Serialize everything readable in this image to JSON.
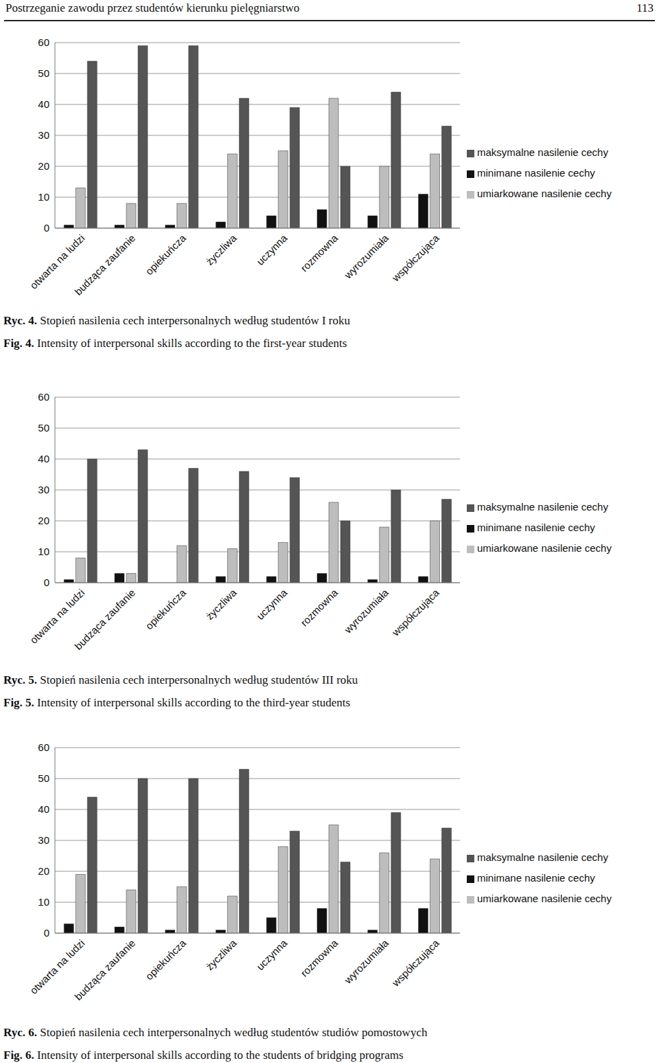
{
  "header": {
    "title": "Postrzeganie zawodu przez studentów kierunku pielęgniarstwo",
    "page": 113
  },
  "chart_data": [
    {
      "type": "bar",
      "categories": [
        "otwarta na ludzi",
        "budząca zaufanie",
        "opiekuńcza",
        "życzliwa",
        "uczynna",
        "rozmowna",
        "wyrozumiała",
        "współczująca"
      ],
      "series": [
        {
          "name": "minimane nasilenie cechy",
          "color": "#111111",
          "values": [
            1,
            1,
            1,
            2,
            4,
            6,
            4,
            11
          ]
        },
        {
          "name": "umiarkowane nasilenie cechy",
          "color": "#bdbdbd",
          "values": [
            13,
            8,
            8,
            24,
            25,
            42,
            20,
            24
          ]
        },
        {
          "name": "maksymalne nasilenie cechy",
          "color": "#555555",
          "values": [
            54,
            59,
            59,
            42,
            39,
            20,
            44,
            33
          ]
        }
      ],
      "ylim": [
        0,
        60
      ],
      "yticks": [
        0,
        10,
        20,
        30,
        40,
        50,
        60
      ],
      "grid": true,
      "legend": "right"
    },
    {
      "type": "bar",
      "categories": [
        "otwarta na ludzi",
        "budząca zaufanie",
        "opiekuńcza",
        "życzliwa",
        "uczynna",
        "rozmowna",
        "wyrozumiała",
        "współczująca"
      ],
      "series": [
        {
          "name": "minimane nasilenie cechy",
          "color": "#111111",
          "values": [
            1,
            3,
            0,
            2,
            2,
            3,
            1,
            2
          ]
        },
        {
          "name": "umiarkowane nasilenie cechy",
          "color": "#bdbdbd",
          "values": [
            8,
            3,
            12,
            11,
            13,
            26,
            18,
            20
          ]
        },
        {
          "name": "maksymalne nasilenie cechy",
          "color": "#555555",
          "values": [
            40,
            43,
            37,
            36,
            34,
            20,
            30,
            27
          ]
        }
      ],
      "ylim": [
        0,
        60
      ],
      "yticks": [
        0,
        10,
        20,
        30,
        40,
        50,
        60
      ],
      "grid": true,
      "legend": "right"
    },
    {
      "type": "bar",
      "categories": [
        "otwarta na ludzi",
        "budząca zaufanie",
        "opiekuńcza",
        "życzliwa",
        "uczynna",
        "rozmowna",
        "wyrozumiała",
        "współczująca"
      ],
      "series": [
        {
          "name": "minimane nasilenie cechy",
          "color": "#111111",
          "values": [
            3,
            2,
            1,
            1,
            5,
            8,
            1,
            8
          ]
        },
        {
          "name": "umiarkowane nasilenie cechy",
          "color": "#bdbdbd",
          "values": [
            19,
            14,
            15,
            12,
            28,
            35,
            26,
            24
          ]
        },
        {
          "name": "maksymalne nasilenie cechy",
          "color": "#555555",
          "values": [
            44,
            50,
            50,
            53,
            33,
            23,
            39,
            34
          ]
        }
      ],
      "ylim": [
        0,
        60
      ],
      "yticks": [
        0,
        10,
        20,
        30,
        40,
        50,
        60
      ],
      "grid": true,
      "legend": "right"
    }
  ],
  "captions": [
    [
      {
        "label": "Ryc. 4.",
        "text": "Stopień nasilenia cech interpersonalnych według studentów I roku"
      },
      {
        "label": "Fig. 4.",
        "text": "Intensity of interpersonal skills according to the first-year students"
      }
    ],
    [
      {
        "label": "Ryc. 5.",
        "text": "Stopień nasilenia cech interpersonalnych według studentów III roku"
      },
      {
        "label": "Fig. 5.",
        "text": "Intensity of interpersonal skills according to the third-year students"
      }
    ],
    [
      {
        "label": "Ryc. 6.",
        "text": "Stopień nasilenia cech interpersonalnych według studentów studiów pomostowych"
      },
      {
        "label": "Fig. 6.",
        "text": "Intensity of interpersonal skills according to the students of bridging programs"
      }
    ]
  ]
}
